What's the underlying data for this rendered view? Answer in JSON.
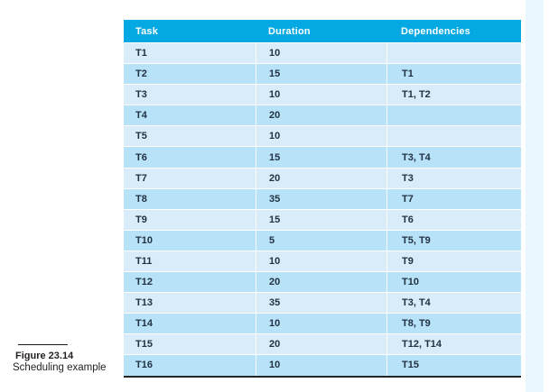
{
  "figure": {
    "label": "Figure 23.14",
    "caption": "Scheduling example"
  },
  "table": {
    "columns": [
      "Task",
      "Duration",
      "Dependencies"
    ],
    "rows": [
      {
        "task": "T1",
        "duration": "10",
        "dependencies": ""
      },
      {
        "task": "T2",
        "duration": "15",
        "dependencies": "T1"
      },
      {
        "task": "T3",
        "duration": "10",
        "dependencies": "T1, T2"
      },
      {
        "task": "T4",
        "duration": "20",
        "dependencies": ""
      },
      {
        "task": "T5",
        "duration": "10",
        "dependencies": ""
      },
      {
        "task": "T6",
        "duration": "15",
        "dependencies": "T3, T4"
      },
      {
        "task": "T7",
        "duration": "20",
        "dependencies": "T3"
      },
      {
        "task": "T8",
        "duration": "35",
        "dependencies": "T7"
      },
      {
        "task": "T9",
        "duration": "15",
        "dependencies": "T6"
      },
      {
        "task": "T10",
        "duration": "5",
        "dependencies": "T5, T9"
      },
      {
        "task": "T11",
        "duration": "10",
        "dependencies": "T9"
      },
      {
        "task": "T12",
        "duration": "20",
        "dependencies": "T10"
      },
      {
        "task": "T13",
        "duration": "35",
        "dependencies": "T3, T4"
      },
      {
        "task": "T14",
        "duration": "10",
        "dependencies": "T8, T9"
      },
      {
        "task": "T15",
        "duration": "20",
        "dependencies": "T12, T14"
      },
      {
        "task": "T16",
        "duration": "10",
        "dependencies": "T15"
      }
    ]
  },
  "colors": {
    "header_bg": "#04a8e2",
    "header_text": "#ffffff",
    "row_light": "#d8edf9",
    "row_dark": "#b7e2f8",
    "cell_text": "#223243",
    "page_strip": "#e9f6fe",
    "table_bottom_border": "#242424"
  }
}
